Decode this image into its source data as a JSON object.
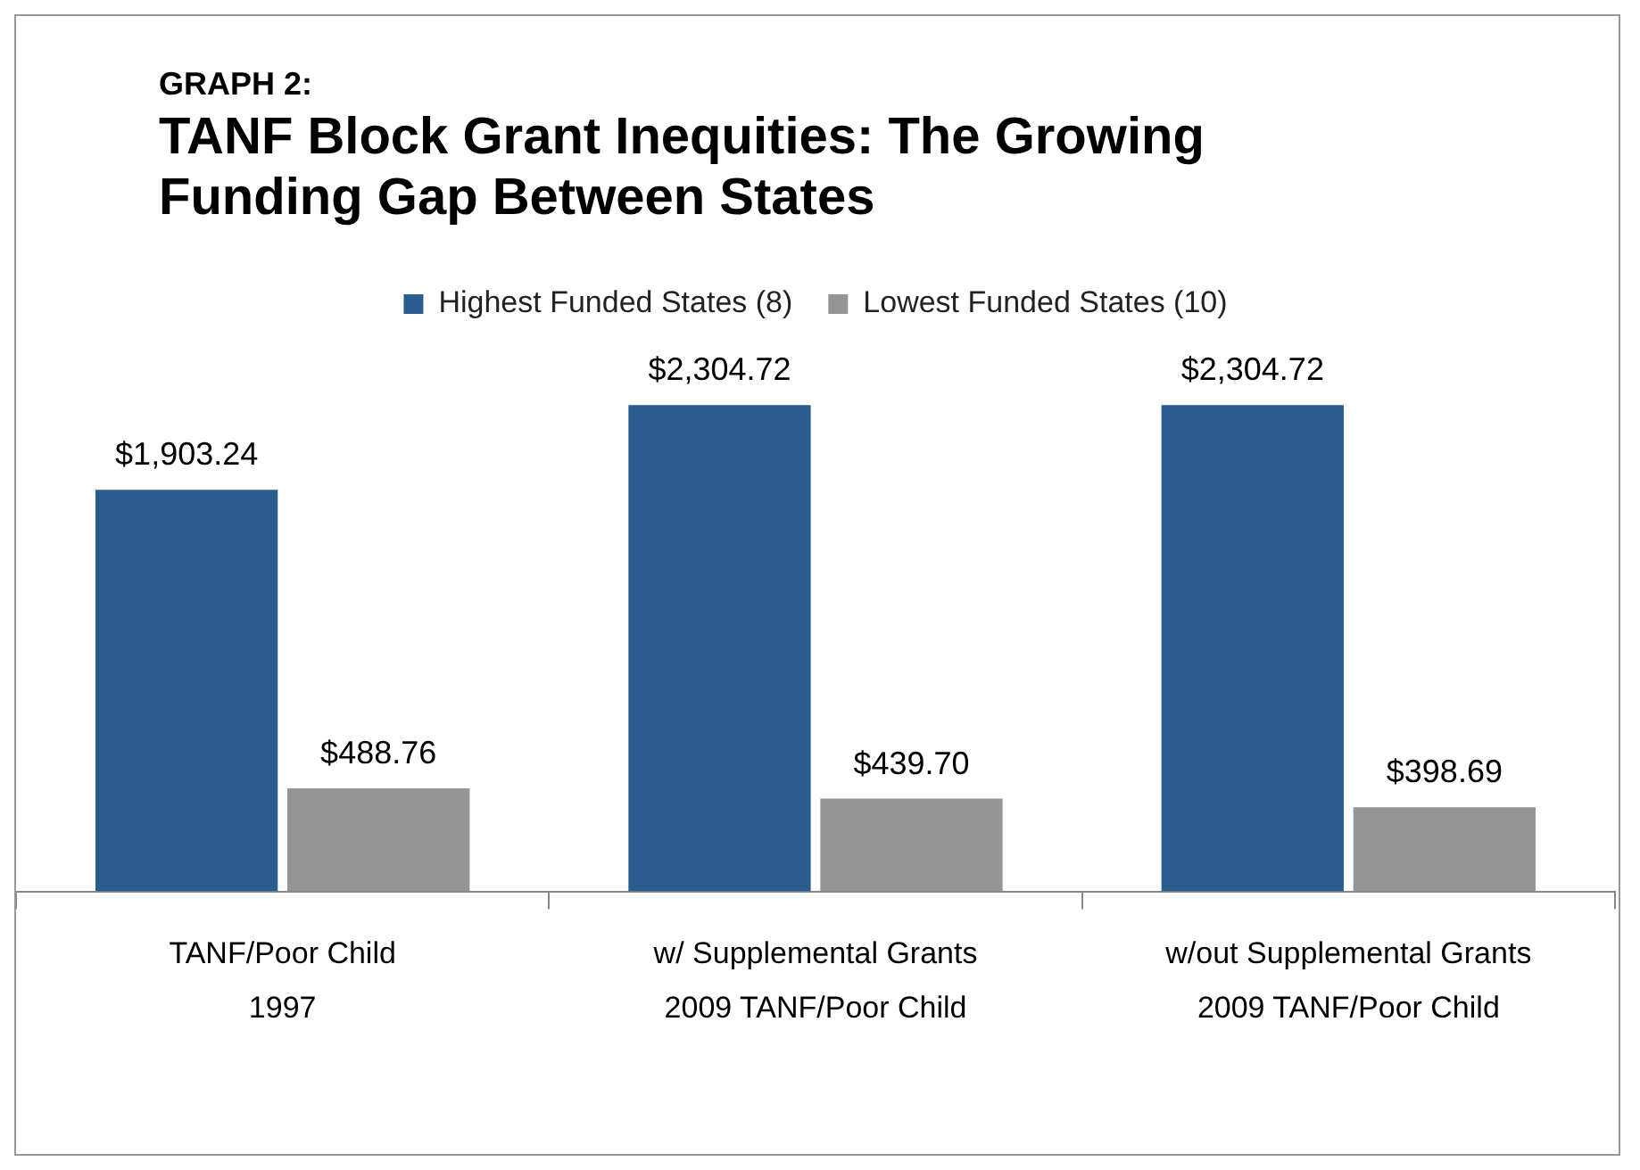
{
  "chart_data": {
    "type": "bar",
    "subtitle": "GRAPH 2:",
    "title": "TANF Block Grant Inequities: The Growing Funding Gap Between States",
    "categories": [
      "TANF/Poor Child\n1997",
      "w/ Supplemental Grants\n2009 TANF/Poor Child",
      "w/out Supplemental Grants\n2009 TANF/Poor Child"
    ],
    "series": [
      {
        "name": "Highest Funded States (8)",
        "color": "#2b5c8e",
        "values": [
          1903.24,
          2304.72,
          2304.72
        ],
        "value_labels": [
          "$1,903.24",
          "$2,304.72",
          "$2,304.72"
        ]
      },
      {
        "name": "Lowest Funded States (10)",
        "color": "#959595",
        "values": [
          488.76,
          439.7,
          398.69
        ],
        "value_labels": [
          "$488.76",
          "$439.70",
          "$398.69"
        ]
      }
    ],
    "legend": "top",
    "grid": false
  }
}
